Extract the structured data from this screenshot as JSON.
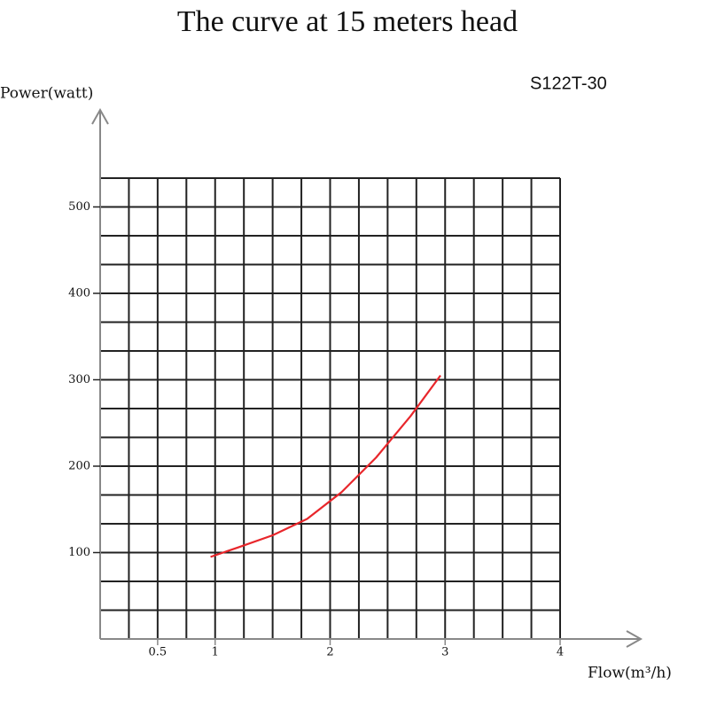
{
  "chart_data": {
    "type": "line",
    "title": "The curve at 15 meters head",
    "subtitle": "S122T-30",
    "y_label": "Power(watt)",
    "x_label": "Flow(m³/h)",
    "xlim": [
      0,
      4
    ],
    "xticks": [
      0.5,
      1,
      2,
      3,
      4
    ],
    "ylim": [
      0,
      533.33
    ],
    "yticks": [
      100,
      200,
      300,
      400,
      500
    ],
    "grid": true,
    "series": [
      {
        "color": "#e8262b",
        "x": [
          0.96,
          1.2,
          1.5,
          1.8,
          2.1,
          2.4,
          2.7,
          2.96
        ],
        "values": [
          95,
          106,
          120,
          139,
          170,
          210,
          258,
          305
        ]
      }
    ]
  }
}
